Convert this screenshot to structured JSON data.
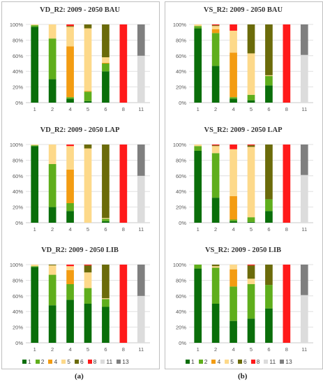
{
  "legend_labels": [
    "1",
    "2",
    "4",
    "5",
    "6",
    "8",
    "11",
    "13"
  ],
  "colors": {
    "1": "#0a6e0a",
    "2": "#5fae1c",
    "4": "#f39c12",
    "5": "#fdd98a",
    "6": "#6b6b0a",
    "8": "#ff1a1a",
    "11": "#dcdcdc",
    "13": "#7f7f7f"
  },
  "sublabels": [
    "(a)",
    "(b)"
  ],
  "chart_data": [
    {
      "type": "bar",
      "stacked": true,
      "title": "VD_R2: 2009 - 2050 BAU",
      "categories": [
        "1",
        "2",
        "4",
        "5",
        "6",
        "8",
        "11"
      ],
      "ylim": [
        0,
        100
      ],
      "yticks": [
        "0%",
        "20%",
        "40%",
        "60%",
        "80%",
        "100%"
      ],
      "series": [
        {
          "name": "1",
          "values": [
            97,
            30,
            5,
            2,
            40,
            0,
            0
          ]
        },
        {
          "name": "2",
          "values": [
            2,
            52,
            2,
            12,
            10,
            0,
            0
          ]
        },
        {
          "name": "4",
          "values": [
            0,
            0,
            65,
            1,
            1,
            0,
            0
          ]
        },
        {
          "name": "5",
          "values": [
            1,
            18,
            25,
            80,
            7,
            0,
            0
          ]
        },
        {
          "name": "6",
          "values": [
            0,
            0,
            1,
            5,
            42,
            0,
            0
          ]
        },
        {
          "name": "8",
          "values": [
            0,
            0,
            2,
            0,
            0,
            100,
            0
          ]
        },
        {
          "name": "11",
          "values": [
            0,
            0,
            0,
            0,
            0,
            0,
            60
          ]
        },
        {
          "name": "13",
          "values": [
            0,
            0,
            0,
            0,
            0,
            0,
            40
          ]
        }
      ]
    },
    {
      "type": "bar",
      "stacked": true,
      "title": "VS_R2: 2009 - 2050 BAU",
      "categories": [
        "1",
        "2",
        "4",
        "5",
        "6",
        "8",
        "11"
      ],
      "ylim": [
        0,
        100
      ],
      "yticks": [
        "0%",
        "20%",
        "40%",
        "60%",
        "80%",
        "100%"
      ],
      "series": [
        {
          "name": "1",
          "values": [
            95,
            47,
            5,
            3,
            22,
            0,
            0
          ]
        },
        {
          "name": "2",
          "values": [
            3,
            42,
            2,
            7,
            12,
            0,
            0
          ]
        },
        {
          "name": "4",
          "values": [
            0,
            5,
            57,
            0,
            0,
            0,
            0
          ]
        },
        {
          "name": "5",
          "values": [
            2,
            4,
            28,
            53,
            1,
            0,
            0
          ]
        },
        {
          "name": "6",
          "values": [
            0,
            1,
            0,
            37,
            65,
            0,
            0
          ]
        },
        {
          "name": "8",
          "values": [
            0,
            1,
            8,
            0,
            0,
            100,
            0
          ]
        },
        {
          "name": "11",
          "values": [
            0,
            0,
            0,
            0,
            0,
            0,
            61
          ]
        },
        {
          "name": "13",
          "values": [
            0,
            0,
            0,
            0,
            0,
            0,
            39
          ]
        }
      ]
    },
    {
      "type": "bar",
      "stacked": true,
      "title": "VD_R2: 2009 - 2050 LAP",
      "categories": [
        "1",
        "2",
        "4",
        "5",
        "6",
        "8",
        "11"
      ],
      "ylim": [
        0,
        100
      ],
      "yticks": [
        "0%",
        "20%",
        "40%",
        "60%",
        "80%",
        "100%"
      ],
      "series": [
        {
          "name": "1",
          "values": [
            98,
            20,
            15,
            0,
            2,
            0,
            0
          ]
        },
        {
          "name": "2",
          "values": [
            1,
            55,
            10,
            0,
            3,
            0,
            0
          ]
        },
        {
          "name": "4",
          "values": [
            0,
            0,
            43,
            0,
            0,
            0,
            0
          ]
        },
        {
          "name": "5",
          "values": [
            1,
            25,
            30,
            95,
            1,
            0,
            0
          ]
        },
        {
          "name": "6",
          "values": [
            0,
            0,
            0,
            5,
            94,
            0,
            0
          ]
        },
        {
          "name": "8",
          "values": [
            0,
            0,
            2,
            0,
            0,
            100,
            0
          ]
        },
        {
          "name": "11",
          "values": [
            0,
            0,
            0,
            0,
            0,
            0,
            60
          ]
        },
        {
          "name": "13",
          "values": [
            0,
            0,
            0,
            0,
            0,
            0,
            40
          ]
        }
      ]
    },
    {
      "type": "bar",
      "stacked": true,
      "title": "VS_R2: 2009 - 2050 LAP",
      "categories": [
        "1",
        "2",
        "4",
        "5",
        "6",
        "8",
        "11"
      ],
      "ylim": [
        0,
        100
      ],
      "yticks": [
        "0%",
        "20%",
        "40%",
        "60%",
        "80%",
        "100%"
      ],
      "series": [
        {
          "name": "1",
          "values": [
            92,
            32,
            2,
            1,
            15,
            0,
            0
          ]
        },
        {
          "name": "2",
          "values": [
            6,
            57,
            2,
            6,
            15,
            0,
            0
          ]
        },
        {
          "name": "4",
          "values": [
            0,
            0,
            30,
            0,
            0,
            0,
            0
          ]
        },
        {
          "name": "5",
          "values": [
            2,
            9,
            60,
            90,
            0,
            0,
            0
          ]
        },
        {
          "name": "6",
          "values": [
            0,
            1,
            0,
            2,
            70,
            0,
            0
          ]
        },
        {
          "name": "8",
          "values": [
            0,
            1,
            6,
            1,
            0,
            100,
            0
          ]
        },
        {
          "name": "11",
          "values": [
            0,
            0,
            0,
            0,
            0,
            0,
            61
          ]
        },
        {
          "name": "13",
          "values": [
            0,
            0,
            0,
            0,
            0,
            0,
            39
          ]
        }
      ]
    },
    {
      "type": "bar",
      "stacked": true,
      "title": "VD_R2: 2009 - 2050 LIB",
      "categories": [
        "1",
        "2",
        "4",
        "5",
        "6",
        "8",
        "11"
      ],
      "ylim": [
        0,
        100
      ],
      "yticks": [
        "0%",
        "20%",
        "40%",
        "60%",
        "80%",
        "100%"
      ],
      "series": [
        {
          "name": "1",
          "values": [
            97,
            48,
            55,
            50,
            46,
            0,
            0
          ]
        },
        {
          "name": "2",
          "values": [
            1,
            39,
            20,
            20,
            10,
            0,
            0
          ]
        },
        {
          "name": "4",
          "values": [
            0,
            0,
            18,
            0,
            0,
            0,
            0
          ]
        },
        {
          "name": "5",
          "values": [
            2,
            12,
            5,
            20,
            1,
            0,
            0
          ]
        },
        {
          "name": "6",
          "values": [
            0,
            1,
            0,
            9,
            43,
            0,
            0
          ]
        },
        {
          "name": "8",
          "values": [
            0,
            0,
            2,
            1,
            0,
            100,
            0
          ]
        },
        {
          "name": "11",
          "values": [
            0,
            0,
            0,
            0,
            0,
            0,
            60
          ]
        },
        {
          "name": "13",
          "values": [
            0,
            0,
            0,
            0,
            0,
            0,
            40
          ]
        }
      ]
    },
    {
      "type": "bar",
      "stacked": true,
      "title": "VS_R2: 2009 - 2050 LIB",
      "categories": [
        "1",
        "2",
        "4",
        "5",
        "6",
        "8",
        "11"
      ],
      "ylim": [
        0,
        100
      ],
      "yticks": [
        "0%",
        "20%",
        "40%",
        "60%",
        "80%",
        "100%"
      ],
      "series": [
        {
          "name": "1",
          "values": [
            95,
            50,
            28,
            31,
            44,
            0,
            0
          ]
        },
        {
          "name": "2",
          "values": [
            5,
            46,
            44,
            44,
            30,
            0,
            0
          ]
        },
        {
          "name": "4",
          "values": [
            0,
            0,
            22,
            0,
            0,
            0,
            0
          ]
        },
        {
          "name": "5",
          "values": [
            0,
            2,
            6,
            7,
            0,
            0,
            0
          ]
        },
        {
          "name": "6",
          "values": [
            0,
            2,
            0,
            17,
            26,
            0,
            0
          ]
        },
        {
          "name": "8",
          "values": [
            0,
            0,
            0,
            1,
            0,
            100,
            0
          ]
        },
        {
          "name": "11",
          "values": [
            0,
            0,
            0,
            0,
            0,
            0,
            61
          ]
        },
        {
          "name": "13",
          "values": [
            0,
            0,
            0,
            0,
            0,
            0,
            39
          ]
        }
      ]
    }
  ]
}
